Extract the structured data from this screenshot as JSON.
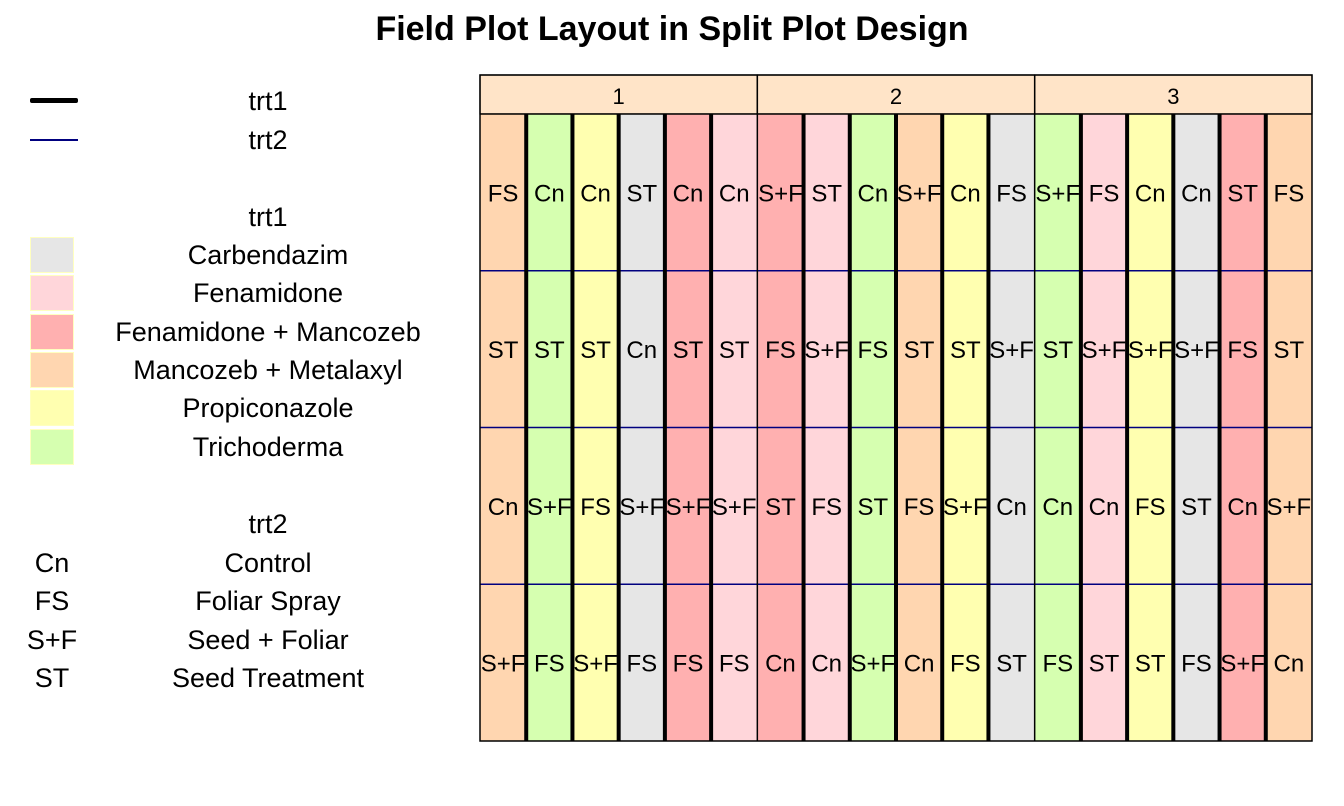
{
  "title": "Field Plot Layout in Split Plot Design",
  "legend": {
    "lines": [
      {
        "label": "trt1",
        "stroke": "#000000",
        "weight": "thick"
      },
      {
        "label": "trt2",
        "stroke": "#00007f",
        "weight": "thin"
      }
    ],
    "trt1_title": "trt1",
    "trt1_items": [
      {
        "label": "Carbendazim",
        "color": "#e6e6e6"
      },
      {
        "label": "Fenamidone",
        "color": "#ffd6da"
      },
      {
        "label": "Fenamidone + Mancozeb",
        "color": "#ffb0b0"
      },
      {
        "label": "Mancozeb + Metalaxyl",
        "color": "#ffd6b0"
      },
      {
        "label": "Propiconazole",
        "color": "#ffffb0"
      },
      {
        "label": "Trichoderma",
        "color": "#d6ffb0"
      }
    ],
    "trt2_title": "trt2",
    "trt2_items": [
      {
        "code": "Cn",
        "label": "Control"
      },
      {
        "code": "FS",
        "label": "Foliar Spray"
      },
      {
        "code": "S+F",
        "label": "Seed + Foliar"
      },
      {
        "code": "ST",
        "label": "Seed Treatment"
      }
    ]
  },
  "chart_data": {
    "type": "table",
    "blocks": [
      {
        "label": "1",
        "columns": [
          {
            "trt1": "Mancozeb + Metalaxyl",
            "trt2": [
              "FS",
              "ST",
              "Cn",
              "S+F"
            ]
          },
          {
            "trt1": "Trichoderma",
            "trt2": [
              "Cn",
              "ST",
              "S+F",
              "FS"
            ]
          },
          {
            "trt1": "Propiconazole",
            "trt2": [
              "Cn",
              "ST",
              "FS",
              "S+F"
            ]
          },
          {
            "trt1": "Carbendazim",
            "trt2": [
              "ST",
              "Cn",
              "S+F",
              "FS"
            ]
          },
          {
            "trt1": "Fenamidone + Mancozeb",
            "trt2": [
              "Cn",
              "ST",
              "S+F",
              "FS"
            ]
          },
          {
            "trt1": "Fenamidone",
            "trt2": [
              "Cn",
              "ST",
              "S+F",
              "FS"
            ]
          }
        ]
      },
      {
        "label": "2",
        "columns": [
          {
            "trt1": "Fenamidone + Mancozeb",
            "trt2": [
              "S+F",
              "FS",
              "ST",
              "Cn"
            ]
          },
          {
            "trt1": "Fenamidone",
            "trt2": [
              "ST",
              "S+F",
              "FS",
              "Cn"
            ]
          },
          {
            "trt1": "Trichoderma",
            "trt2": [
              "Cn",
              "FS",
              "ST",
              "S+F"
            ]
          },
          {
            "trt1": "Mancozeb + Metalaxyl",
            "trt2": [
              "S+F",
              "ST",
              "FS",
              "Cn"
            ]
          },
          {
            "trt1": "Propiconazole",
            "trt2": [
              "Cn",
              "ST",
              "S+F",
              "FS"
            ]
          },
          {
            "trt1": "Carbendazim",
            "trt2": [
              "FS",
              "S+F",
              "Cn",
              "ST"
            ]
          }
        ]
      },
      {
        "label": "3",
        "columns": [
          {
            "trt1": "Trichoderma",
            "trt2": [
              "S+F",
              "ST",
              "Cn",
              "FS"
            ]
          },
          {
            "trt1": "Fenamidone",
            "trt2": [
              "FS",
              "S+F",
              "Cn",
              "ST"
            ]
          },
          {
            "trt1": "Propiconazole",
            "trt2": [
              "Cn",
              "S+F",
              "FS",
              "ST"
            ]
          },
          {
            "trt1": "Carbendazim",
            "trt2": [
              "Cn",
              "S+F",
              "ST",
              "FS"
            ]
          },
          {
            "trt1": "Fenamidone + Mancozeb",
            "trt2": [
              "ST",
              "FS",
              "Cn",
              "S+F"
            ]
          },
          {
            "trt1": "Mancozeb + Metalaxyl",
            "trt2": [
              "FS",
              "ST",
              "S+F",
              "Cn"
            ]
          }
        ]
      }
    ]
  },
  "colors": {
    "strip_fill": "#ffe4c8",
    "border": "#000000",
    "trt2_line": "#00007f"
  }
}
